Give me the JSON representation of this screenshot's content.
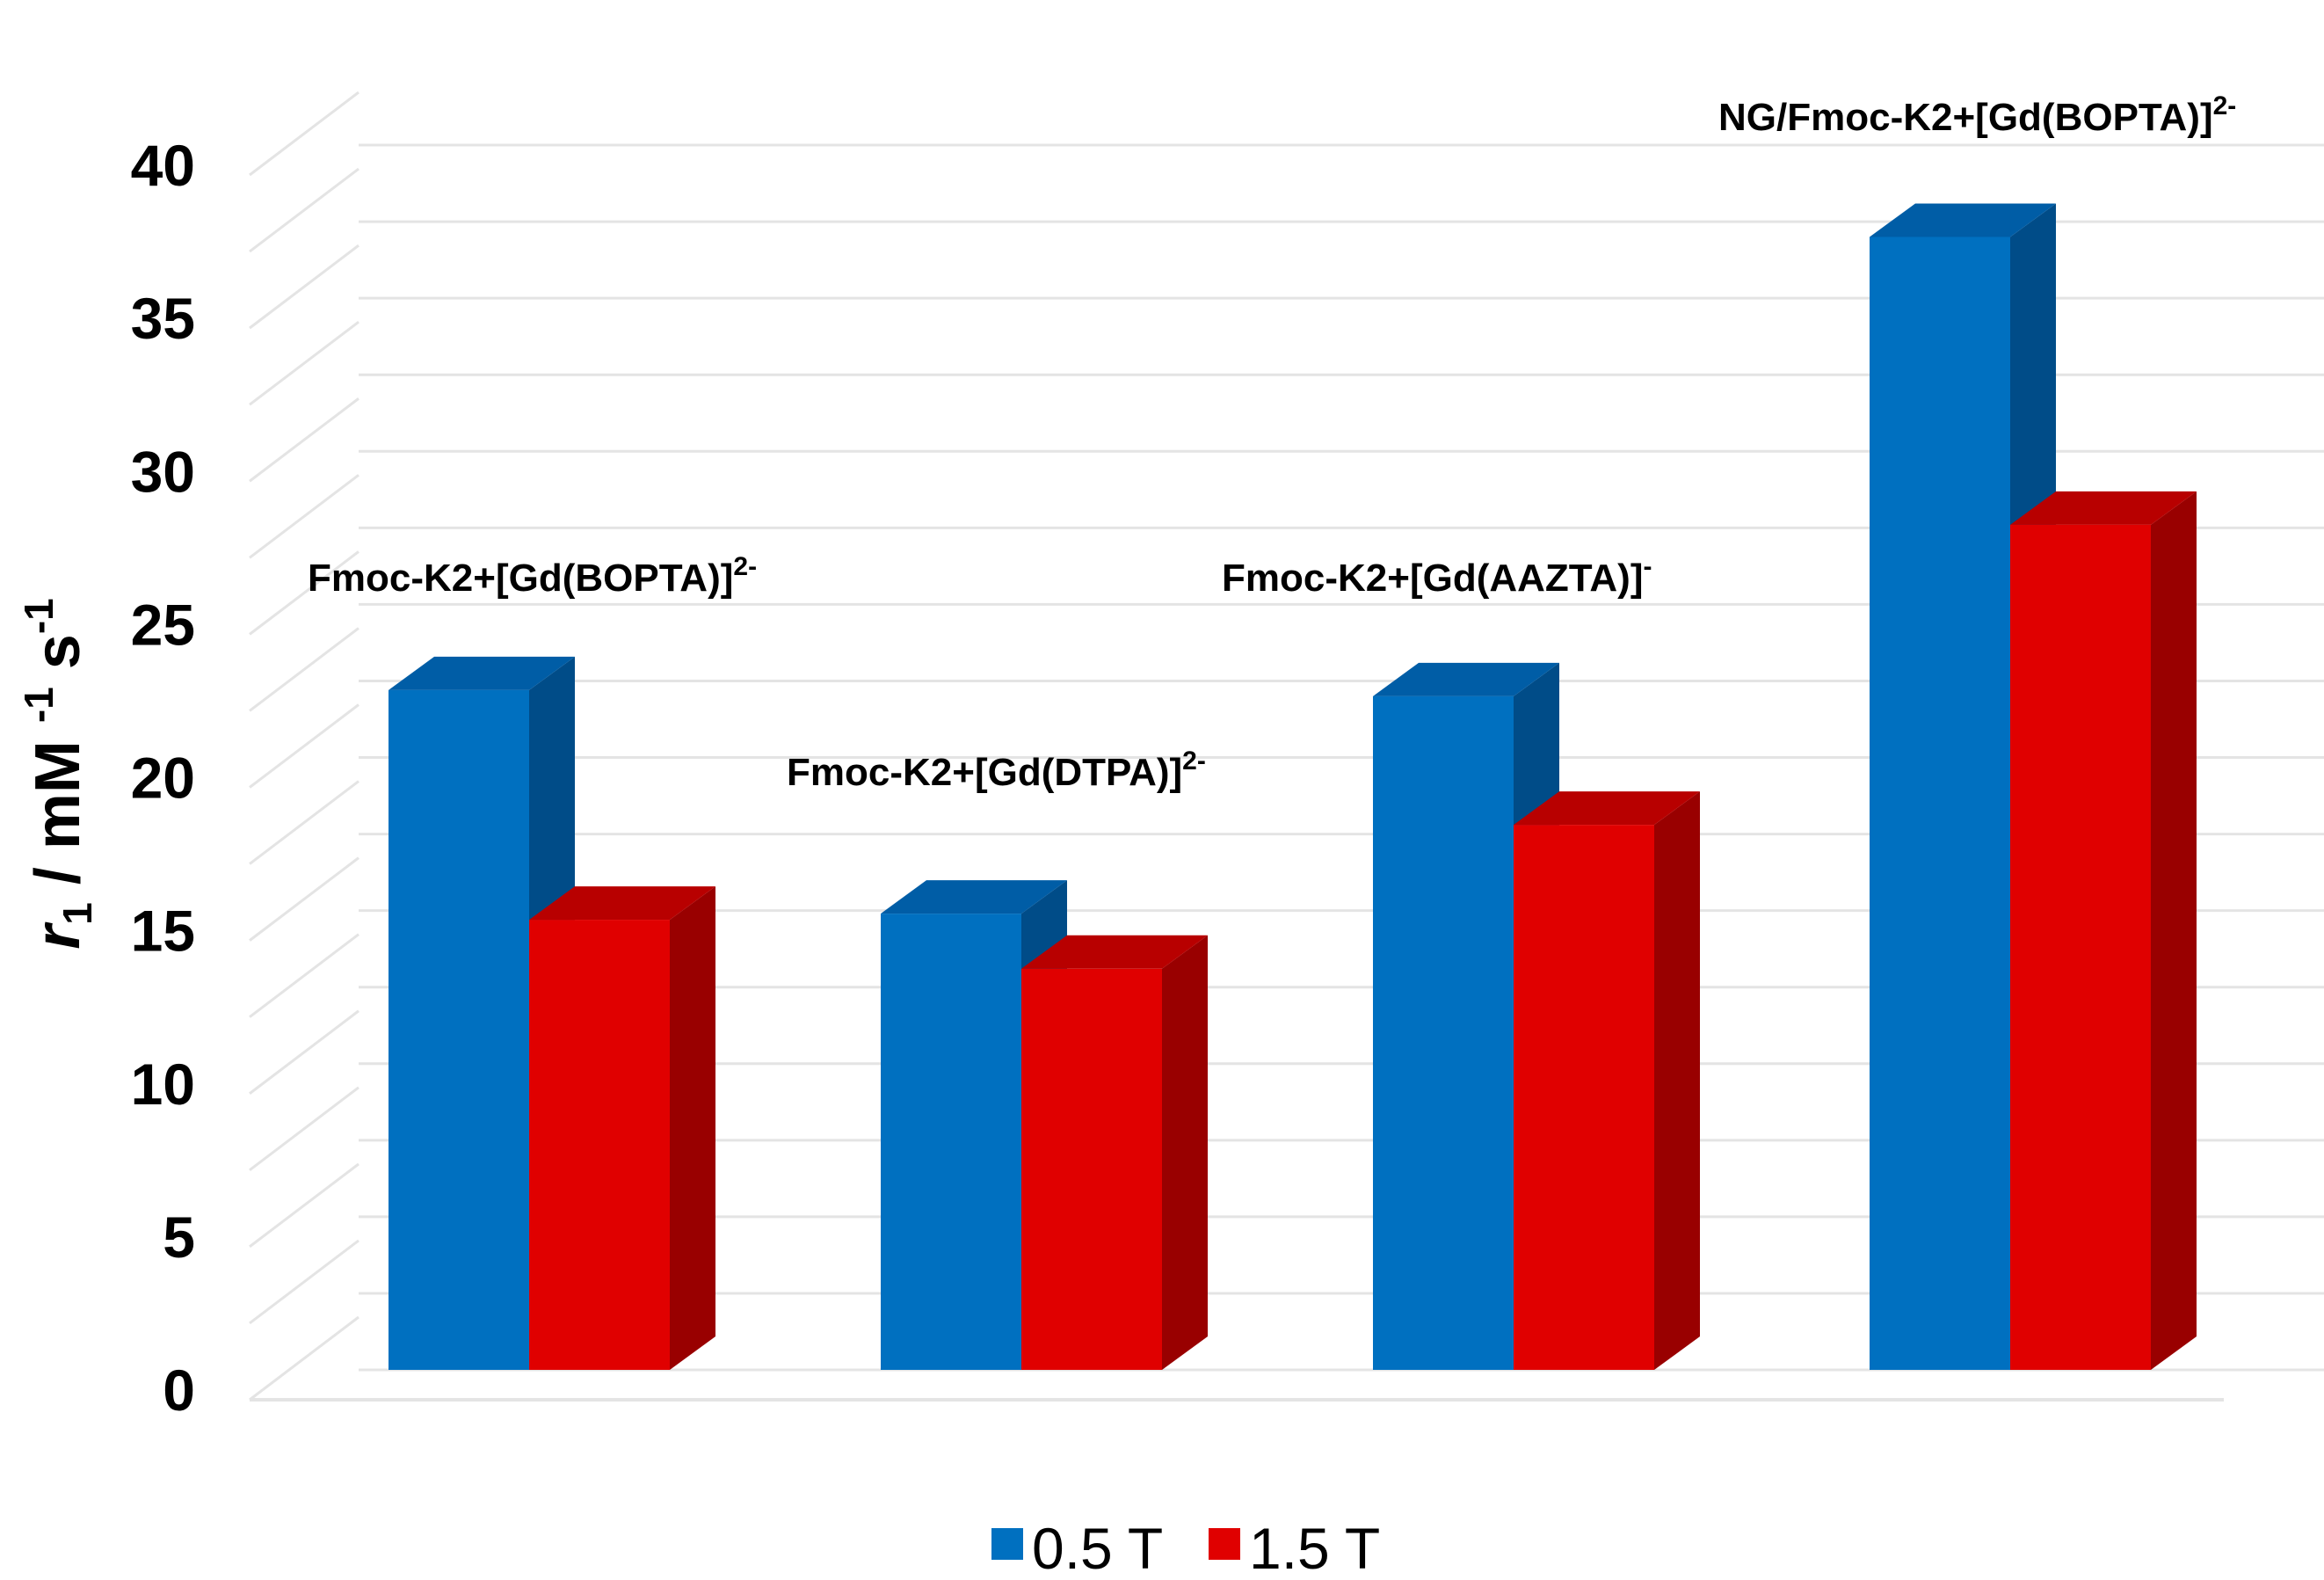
{
  "chart_data": {
    "type": "bar",
    "categories": [
      {
        "base": "Fmoc-K2+[Gd(BOPTA)]",
        "sup": "2-"
      },
      {
        "base": "Fmoc-K2+[Gd(DTPA)]",
        "sup": "2-"
      },
      {
        "base": "Fmoc-K2+[Gd(AAZTA)]",
        "sup": "-"
      },
      {
        "base": "NG/Fmoc-K2+[Gd(BOPTA)]",
        "sup": "2-"
      }
    ],
    "series": [
      {
        "name": "0.5 T",
        "values": [
          22.2,
          14.9,
          22.0,
          37.0
        ]
      },
      {
        "name": "1.5 T",
        "values": [
          14.7,
          13.1,
          17.8,
          27.6
        ]
      }
    ],
    "ylabel": {
      "italic": "r",
      "sub": "1",
      "text": " / mM ",
      "sup1": "-1",
      "text2": " s",
      "sup2": "-1"
    },
    "ylim": [
      0,
      40
    ],
    "yticks": [
      "0",
      "5",
      "10",
      "15",
      "20",
      "25",
      "30",
      "35",
      "40"
    ],
    "grid": true,
    "legend_position": "bottom",
    "colors": {
      "series_front": [
        "#0070C0",
        "#E00000"
      ],
      "series_side": [
        "#004C88",
        "#990000"
      ],
      "series_top": [
        "#005DA6",
        "#B80000"
      ],
      "grid": "#E4E4E4"
    }
  }
}
